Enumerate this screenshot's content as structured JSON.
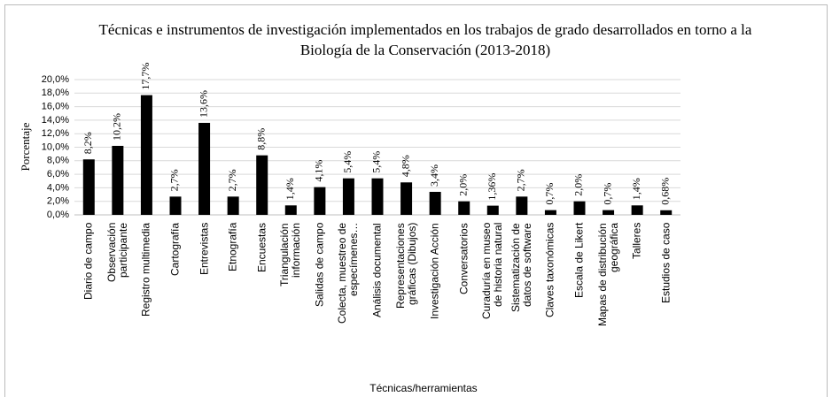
{
  "chart_data": {
    "type": "bar",
    "title": "Técnicas e instrumentos de investigación implementados en los trabajos de grado desarrollados en torno a la Biología de la Conservación (2013-2018)",
    "y_label": "Porcentaje",
    "x_label": "Técnicas/herramientas",
    "categories": [
      "Diario de campo",
      "Observación participante",
      "Registro multimedia",
      "Cartografía",
      "Entrevistas",
      "Etnografía",
      "Encuestas",
      "Triangulación información",
      "Salidas de campo",
      "Colecta, muestreo de especímenes…",
      "Análisis documental",
      "Representaciones gráficas (Dibujos)",
      "Investigación Acción",
      "Conversatorios",
      "Curaduría en museo de historia natural",
      "Sistematización de datos de software",
      "Claves taxonómicas",
      "Escala de Likert",
      "Mapas de distribución geográfica",
      "Talleres",
      "Estudios de caso"
    ],
    "values": [
      8.2,
      10.2,
      17.7,
      2.7,
      13.6,
      2.7,
      8.8,
      1.4,
      4.1,
      5.4,
      5.4,
      4.8,
      3.4,
      2.0,
      1.36,
      2.7,
      0.7,
      2.0,
      0.7,
      1.4,
      0.68
    ],
    "value_labels": [
      "8,2%",
      "10,2%",
      "17,7%",
      "2,7%",
      "13,6%",
      "2,7%",
      "8,8%",
      "1,4%",
      "4,1%",
      "5,4%",
      "5,4%",
      "4,8%",
      "3,4%",
      "2,0%",
      "1,36%",
      "2,7%",
      "0,7%",
      "2,0%",
      "0,7%",
      "1,4%",
      "0,68%"
    ],
    "color": "#000000",
    "ylim": [
      0,
      20
    ],
    "yticks": [
      {
        "value": 0,
        "label": "0,0%"
      },
      {
        "value": 2,
        "label": "2,0%"
      },
      {
        "value": 4,
        "label": "4,0%"
      },
      {
        "value": 6,
        "label": "6,0%"
      },
      {
        "value": 8,
        "label": "8,0%"
      },
      {
        "value": 10,
        "label": "10,0%"
      },
      {
        "value": 12,
        "label": "12,0%"
      },
      {
        "value": 14,
        "label": "14,0%"
      },
      {
        "value": 16,
        "label": "16,0%"
      },
      {
        "value": 18,
        "label": "18,0%"
      },
      {
        "value": 20,
        "label": "20,0%"
      }
    ],
    "grid": true
  }
}
